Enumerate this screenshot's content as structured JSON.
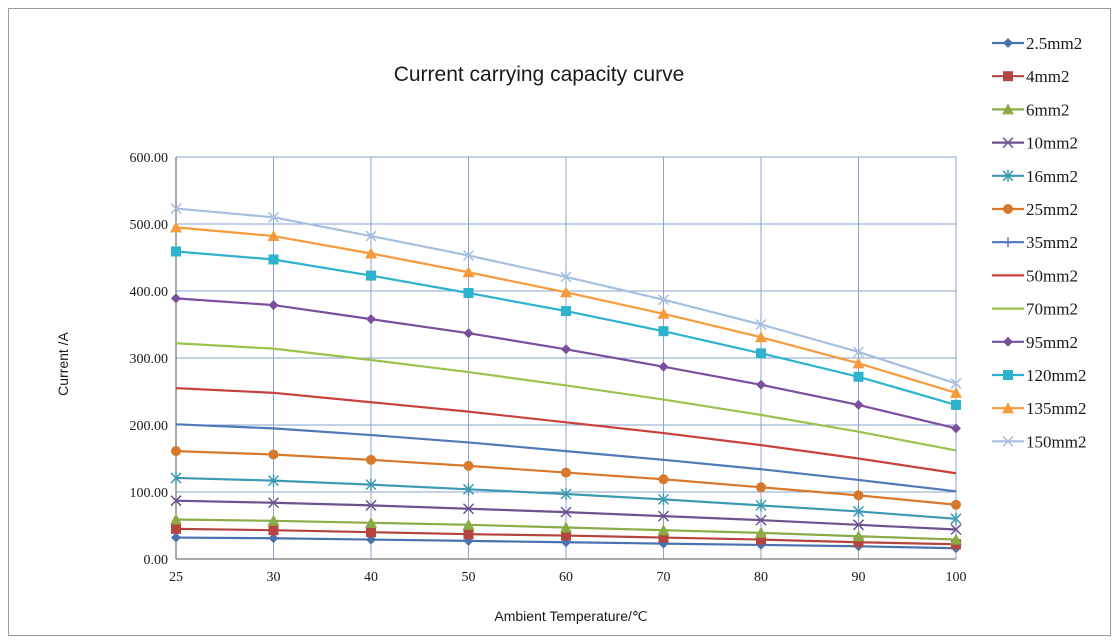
{
  "chart_data": {
    "type": "line",
    "title": "Current carrying capacity curve",
    "xlabel": "Ambient Temperature/℃",
    "ylabel": "Current /A",
    "categories": [
      "25",
      "30",
      "40",
      "50",
      "60",
      "70",
      "80",
      "90",
      "100"
    ],
    "y_ticks": [
      "0.00",
      "100.00",
      "200.00",
      "300.00",
      "400.00",
      "500.00",
      "600.00"
    ],
    "ylim": [
      0,
      600
    ],
    "grid": true,
    "legend_position": "right",
    "series": [
      {
        "name": "2.5mm2",
        "color": "#4a72b0",
        "marker": "diamond",
        "values": [
          32,
          31,
          29,
          27,
          25,
          23,
          21,
          19,
          16
        ]
      },
      {
        "name": "4mm2",
        "color": "#b5443f",
        "marker": "square",
        "values": [
          45,
          43,
          40,
          37,
          35,
          32,
          29,
          25,
          22
        ]
      },
      {
        "name": "6mm2",
        "color": "#8aab45",
        "marker": "triangle",
        "values": [
          59,
          57,
          54,
          51,
          47,
          43,
          39,
          34,
          29
        ]
      },
      {
        "name": "10mm2",
        "color": "#6c528f",
        "marker": "x",
        "values": [
          87,
          84,
          80,
          75,
          70,
          64,
          58,
          51,
          44
        ]
      },
      {
        "name": "16mm2",
        "color": "#3e9ab3",
        "marker": "star",
        "values": [
          121,
          117,
          111,
          104,
          97,
          89,
          80,
          71,
          60
        ]
      },
      {
        "name": "25mm2",
        "color": "#d6792c",
        "marker": "circle",
        "values": [
          161,
          156,
          148,
          139,
          129,
          119,
          107,
          95,
          81
        ]
      },
      {
        "name": "35mm2",
        "color": "#4f79b8",
        "marker": "plus",
        "values": [
          201,
          195,
          185,
          174,
          161,
          148,
          134,
          118,
          101
        ]
      },
      {
        "name": "50mm2",
        "color": "#c8413c",
        "marker": "dash",
        "values": [
          255,
          248,
          234,
          220,
          204,
          188,
          170,
          150,
          128
        ]
      },
      {
        "name": "70mm2",
        "color": "#9bc24c",
        "marker": "dash",
        "values": [
          322,
          314,
          297,
          279,
          259,
          238,
          215,
          190,
          162
        ]
      },
      {
        "name": "95mm2",
        "color": "#7a4f9e",
        "marker": "diamond",
        "values": [
          389,
          379,
          358,
          337,
          313,
          287,
          260,
          230,
          195
        ]
      },
      {
        "name": "120mm2",
        "color": "#2fb2ce",
        "marker": "square",
        "values": [
          459,
          447,
          423,
          397,
          370,
          340,
          307,
          272,
          230
        ]
      },
      {
        "name": "135mm2",
        "color": "#f79a3c",
        "marker": "triangle",
        "values": [
          495,
          482,
          456,
          428,
          398,
          366,
          331,
          292,
          248
        ]
      },
      {
        "name": "150mm2",
        "color": "#a8bfe0",
        "marker": "x",
        "values": [
          523,
          510,
          482,
          453,
          421,
          387,
          350,
          309,
          262
        ]
      }
    ]
  }
}
